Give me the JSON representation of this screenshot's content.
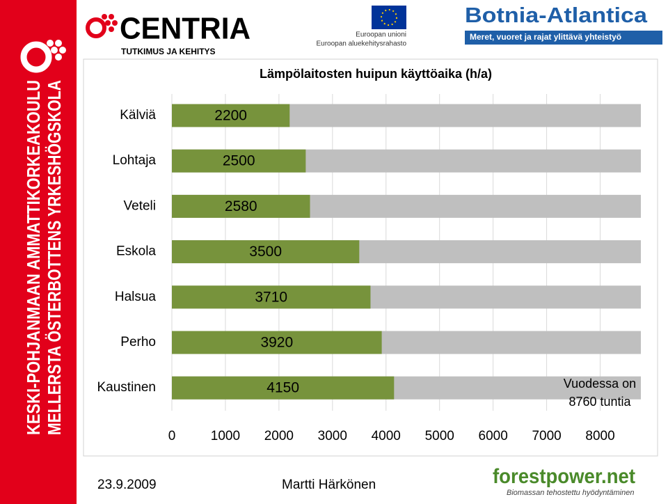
{
  "banner": {
    "line1": "KESKI-POHJANMAAN AMMATTIKORKEAKOULU",
    "line2": "MELLERSTA ÖSTERBOTTENS YRKESHÖGSKOLA"
  },
  "header": {
    "centria": "CENTRIA",
    "centria_sub": "TUTKIMUS JA KEHITYS",
    "eu1": "Euroopan unioni",
    "eu2": "Euroopan aluekehitysrahasto",
    "botnia": "Botnia-Atlantica",
    "botnia_sub": "Meret, vuoret ja rajat ylittävä yhteistyö"
  },
  "chart_data": {
    "type": "bar",
    "orientation": "horizontal",
    "title": "Lämpölaitosten huipun käyttöaika (h/a)",
    "categories": [
      "Kälviä",
      "Lohtaja",
      "Veteli",
      "Eskola",
      "Halsua",
      "Perho",
      "Kaustinen"
    ],
    "values": [
      2200,
      2500,
      2580,
      3500,
      3710,
      3920,
      4150
    ],
    "color": "#77933c",
    "total": 8760,
    "total_color": "#bfbfbf",
    "xlim": [
      0,
      8760
    ],
    "xticks": [
      0,
      1000,
      2000,
      3000,
      4000,
      5000,
      6000,
      7000,
      8000
    ],
    "grid": true,
    "annotation": [
      "Vuodessa on",
      "8760 tuntia"
    ]
  },
  "footer": {
    "date": "23.9.2009",
    "author": "Martti Härkönen",
    "brand": "forestpower.net",
    "brand_sub": "Biomassan tehostettu hyödyntäminen"
  }
}
